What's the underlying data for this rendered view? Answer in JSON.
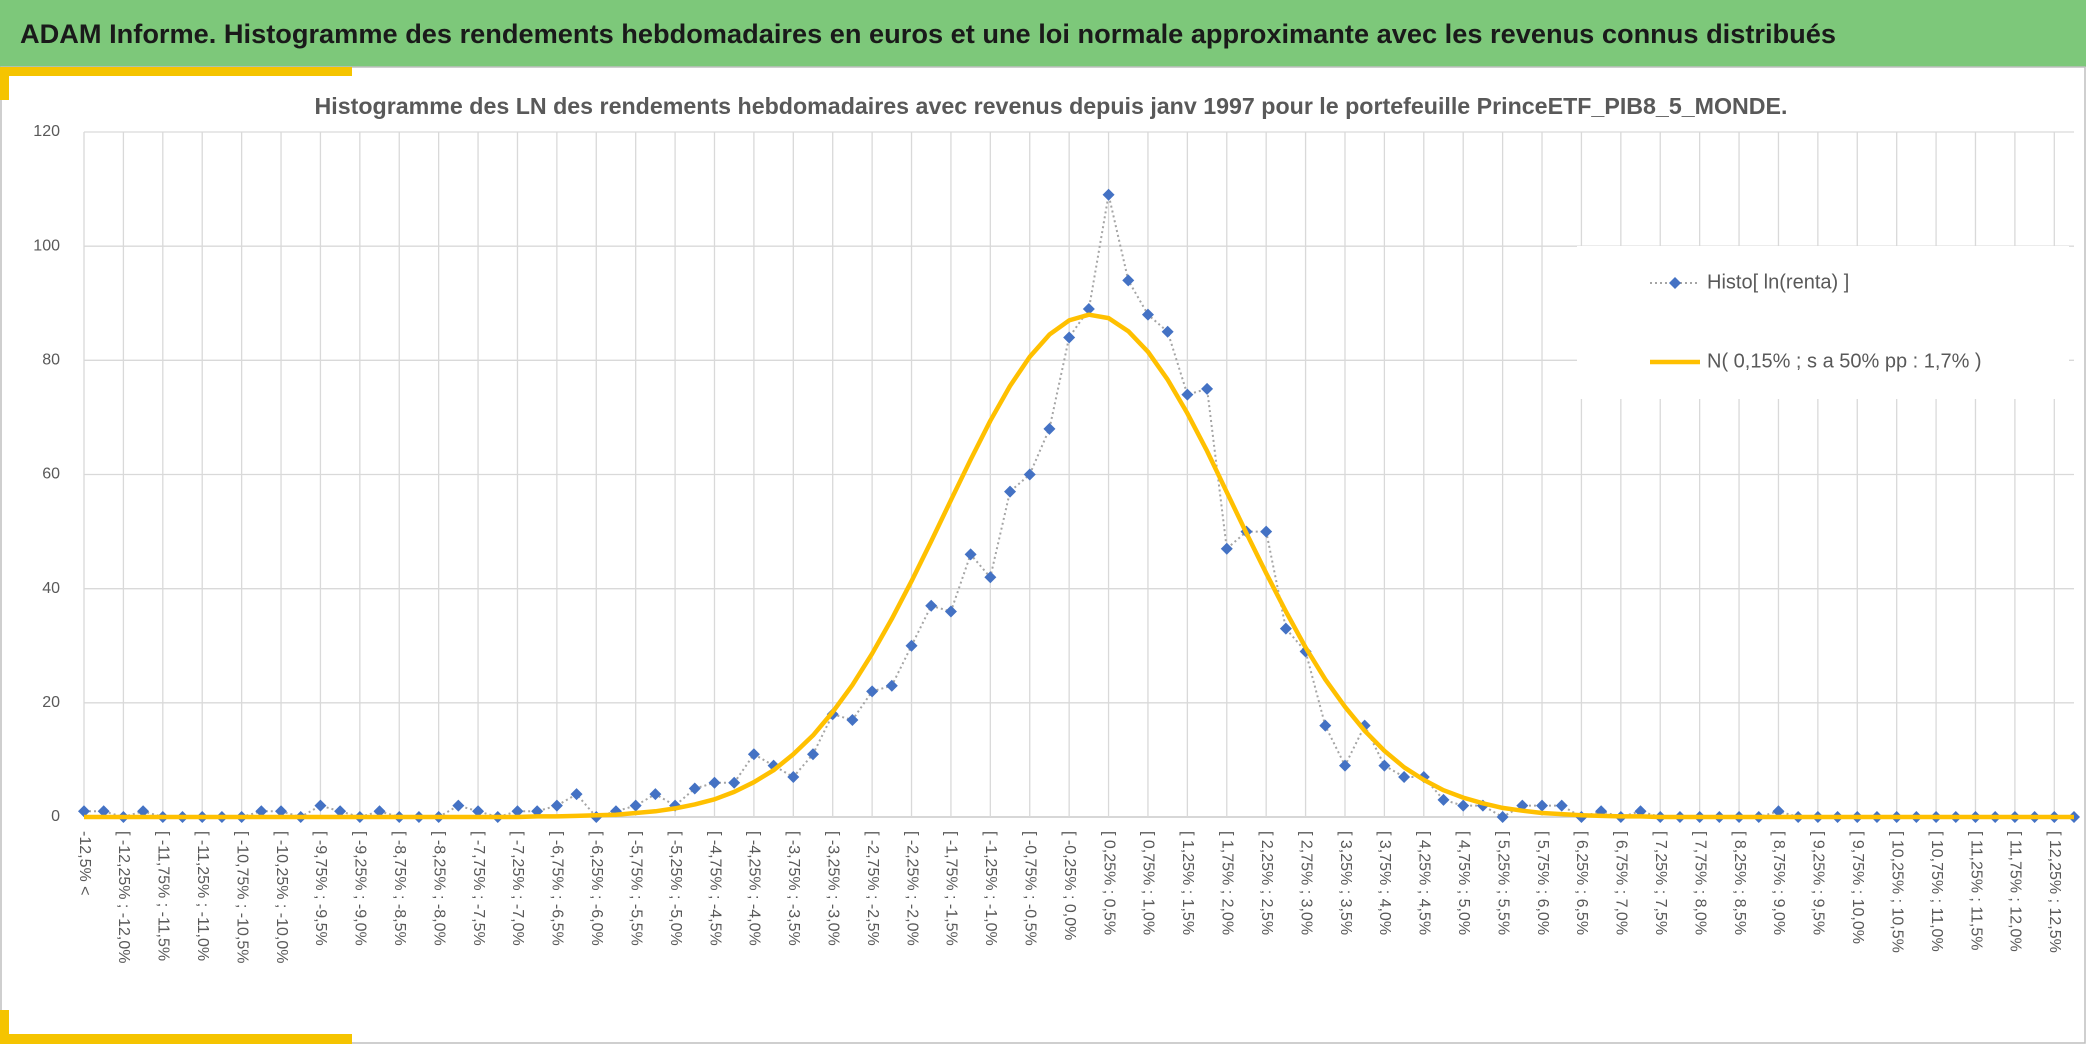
{
  "header": {
    "title": "ADAM Informe. Histogramme des rendements hebdomadaires en euros et une loi normale approximante avec les revenus connus distribués"
  },
  "chart_data": {
    "type": "line",
    "title": "Histogramme des LN des rendements hebdomadaires avec revenus depuis janv 1997 pour le portefeuille PrinceETF_PIB8_5_MONDE.",
    "categories": [
      "-12,5% <",
      null,
      "[ -12,25% ; -12,0%",
      null,
      "[ -11,75% ; -11,5%",
      null,
      "[ -11,25% ; -11,0%",
      null,
      "[ -10,75% ; -10,5%",
      null,
      "[ -10,25% ; -10,0%",
      null,
      "[ -9,75% ; -9,5%",
      null,
      "[ -9,25% ; -9,0%",
      null,
      "[ -8,75% ; -8,5%",
      null,
      "[ -8,25% ; -8,0%",
      null,
      "[ -7,75% ; -7,5%",
      null,
      "[ -7,25% ; -7,0%",
      null,
      "[ -6,75% ; -6,5%",
      null,
      "[ -6,25% ; -6,0%",
      null,
      "[ -5,75% ; -5,5%",
      null,
      "[ -5,25% ; -5,0%",
      null,
      "[ -4,75% ; -4,5%",
      null,
      "[ -4,25% ; -4,0%",
      null,
      "[ -3,75% ; -3,5%",
      null,
      "[ -3,25% ; -3,0%",
      null,
      "[ -2,75% ; -2,5%",
      null,
      "[ -2,25% ; -2,0%",
      null,
      "[ -1,75% ; -1,5%",
      null,
      "[ -1,25% ; -1,0%",
      null,
      "[ -0,75% ; -0,5%",
      null,
      "[ -0,25% ; 0,0%",
      null,
      "[ 0,25% ; 0,5%",
      null,
      "[ 0,75% ; 1,0%",
      null,
      "[ 1,25% ; 1,5%",
      null,
      "[ 1,75% ; 2,0%",
      null,
      "[ 2,25% ; 2,5%",
      null,
      "[ 2,75% ; 3,0%",
      null,
      "[ 3,25% ; 3,5%",
      null,
      "[ 3,75% ; 4,0%",
      null,
      "[ 4,25% ; 4,5%",
      null,
      "[ 4,75% ; 5,0%",
      null,
      "[ 5,25% ; 5,5%",
      null,
      "[ 5,75% ; 6,0%",
      null,
      "[ 6,25% ; 6,5%",
      null,
      "[ 6,75% ; 7,0%",
      null,
      "[ 7,25% ; 7,5%",
      null,
      "[ 7,75% ; 8,0%",
      null,
      "[ 8,25% ; 8,5%",
      null,
      "[ 8,75% ; 9,0%",
      null,
      "[ 9,25% ; 9,5%",
      null,
      "[ 9,75% ; 10,0%",
      null,
      "[ 10,25% ; 10,5%",
      null,
      "[ 10,75% ; 11,0%",
      null,
      "[ 11,25% ; 11,5%",
      null,
      "[ 11,75% ; 12,0%",
      null,
      "[ 12,25% ; 12,5%",
      null
    ],
    "series": [
      {
        "name": "Histo[ ln(renta) ]",
        "color": "#4472c4",
        "marker": "diamond",
        "line_color": "#a5a5a5",
        "line_style": "dotted",
        "values": [
          1,
          1,
          0,
          1,
          0,
          0,
          0,
          0,
          0,
          1,
          1,
          0,
          2,
          1,
          0,
          1,
          0,
          0,
          0,
          2,
          1,
          0,
          1,
          1,
          2,
          4,
          0,
          1,
          2,
          4,
          2,
          5,
          6,
          6,
          11,
          9,
          7,
          11,
          18,
          17,
          22,
          23,
          30,
          37,
          36,
          46,
          42,
          57,
          60,
          68,
          84,
          89,
          109,
          94,
          88,
          85,
          74,
          75,
          47,
          50,
          50,
          33,
          29,
          16,
          9,
          16,
          9,
          7,
          7,
          3,
          2,
          2,
          0,
          2,
          2,
          2,
          0,
          1,
          0,
          1,
          0,
          0,
          0,
          0,
          0,
          0,
          1,
          0,
          0,
          0,
          0,
          0,
          0,
          0,
          0,
          0,
          0,
          0,
          0,
          0,
          0,
          0
        ]
      },
      {
        "name": "N( 0,15% ; s a 50% pp : 1,7% )",
        "color": "#ffc000",
        "marker": "none",
        "line_color": "#ffc000",
        "line_style": "solid",
        "values": [
          0,
          0,
          0,
          0,
          0,
          0,
          0,
          0,
          0,
          0,
          0,
          0,
          0,
          0,
          0,
          0,
          0,
          0,
          0,
          0,
          0,
          0,
          0,
          0.1,
          0.1,
          0.2,
          0.3,
          0.4,
          0.7,
          1.0,
          1.5,
          2.2,
          3.1,
          4.4,
          6.1,
          8.2,
          11.0,
          14.3,
          18.4,
          23.1,
          28.6,
          34.7,
          41.3,
          48.3,
          55.5,
          62.6,
          69.4,
          75.5,
          80.6,
          84.5,
          87.0,
          88.0,
          87.4,
          85.1,
          81.5,
          76.6,
          70.7,
          64.1,
          56.9,
          49.7,
          42.7,
          36.0,
          29.7,
          24.1,
          19.3,
          15.1,
          11.6,
          8.7,
          6.5,
          4.7,
          3.4,
          2.4,
          1.6,
          1.1,
          0.7,
          0.5,
          0.3,
          0.2,
          0.1,
          0.1,
          0,
          0,
          0,
          0,
          0,
          0,
          0,
          0,
          0,
          0,
          0,
          0,
          0,
          0,
          0,
          0,
          0,
          0,
          0,
          0,
          0,
          0
        ]
      }
    ],
    "ylim": [
      0,
      120
    ],
    "yticks": [
      0,
      20,
      40,
      60,
      80,
      100,
      120
    ],
    "grid": true,
    "legend": "right"
  }
}
